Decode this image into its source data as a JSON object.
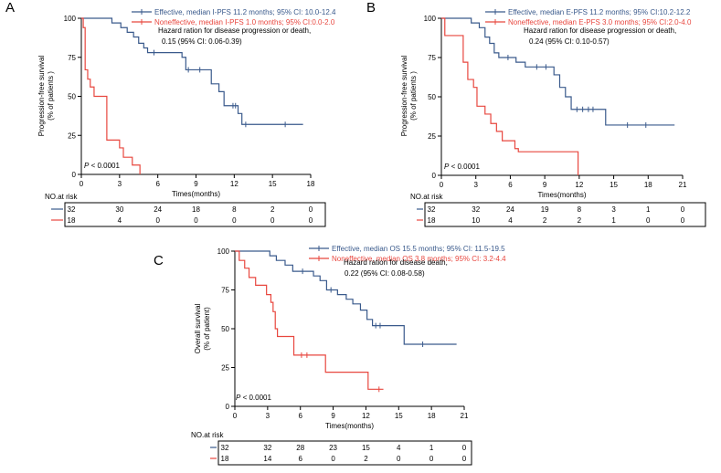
{
  "colors": {
    "effective": "#3a5a8c",
    "noneffective": "#e8473f",
    "axis": "#000000"
  },
  "chart_data": [
    {
      "type": "line",
      "panel_label": "A",
      "xlabel": "Times(months)",
      "ylabel": [
        "Progression-free survival",
        "(% of patients )"
      ],
      "xlim": [
        0,
        18
      ],
      "ylim": [
        0,
        100
      ],
      "xticks": [
        0,
        3,
        6,
        9,
        12,
        15,
        18
      ],
      "yticks": [
        0,
        25,
        50,
        75,
        100
      ],
      "pvalue": "< 0.0001",
      "legend": [
        "Effective, median I-PFS 11.2 months; 95% CI: 10.0-12.4",
        "Noneffective, median I-PFS 1.0 months; 95% CI:0.0-2.0"
      ],
      "annotation": [
        "Hazard ration for disease progression or death,",
        "0.15 (95% CI: 0.06-0.39)"
      ],
      "series": [
        {
          "name": "Effective",
          "step_points": [
            [
              0,
              100
            ],
            [
              2.4,
              100
            ],
            [
              2.4,
              97
            ],
            [
              3.1,
              97
            ],
            [
              3.1,
              94
            ],
            [
              3.6,
              94
            ],
            [
              3.6,
              91
            ],
            [
              4.1,
              91
            ],
            [
              4.1,
              88
            ],
            [
              4.5,
              88
            ],
            [
              4.5,
              84
            ],
            [
              4.9,
              84
            ],
            [
              4.9,
              81
            ],
            [
              5.2,
              81
            ],
            [
              5.2,
              78
            ],
            [
              7.9,
              78
            ],
            [
              7.9,
              75
            ],
            [
              8.2,
              75
            ],
            [
              8.2,
              67
            ],
            [
              10.2,
              67
            ],
            [
              10.2,
              58
            ],
            [
              10.8,
              58
            ],
            [
              10.8,
              53
            ],
            [
              11.2,
              53
            ],
            [
              11.2,
              44
            ],
            [
              12.3,
              44
            ],
            [
              12.3,
              39
            ],
            [
              12.6,
              39
            ],
            [
              12.6,
              32
            ],
            [
              17.4,
              32
            ]
          ],
          "censor_points": [
            [
              5.7,
              78
            ],
            [
              8.4,
              67
            ],
            [
              9.3,
              67
            ],
            [
              11.9,
              44
            ],
            [
              12.1,
              44
            ],
            [
              12.9,
              32
            ],
            [
              16.0,
              32
            ]
          ]
        },
        {
          "name": "Noneffective",
          "step_points": [
            [
              0,
              100
            ],
            [
              0.15,
              100
            ],
            [
              0.15,
              94
            ],
            [
              0.3,
              94
            ],
            [
              0.3,
              67
            ],
            [
              0.5,
              67
            ],
            [
              0.5,
              61
            ],
            [
              0.7,
              61
            ],
            [
              0.7,
              56
            ],
            [
              1.0,
              56
            ],
            [
              1.0,
              50
            ],
            [
              2.0,
              50
            ],
            [
              2.0,
              22
            ],
            [
              3.0,
              22
            ],
            [
              3.0,
              17
            ],
            [
              3.3,
              17
            ],
            [
              3.3,
              11
            ],
            [
              4.0,
              11
            ],
            [
              4.0,
              6
            ],
            [
              4.6,
              6
            ],
            [
              4.6,
              0
            ]
          ],
          "censor_points": []
        }
      ],
      "risk_table": {
        "title": "NO.at risk",
        "rows": [
          [
            "32",
            "30",
            "24",
            "18",
            "8",
            "2",
            "0"
          ],
          [
            "18",
            "4",
            "0",
            "0",
            "0",
            "0",
            "0"
          ]
        ]
      }
    },
    {
      "type": "line",
      "panel_label": "B",
      "xlabel": "Times(months)",
      "ylabel": [
        "Progression-free survival",
        "(% of patients )"
      ],
      "xlim": [
        0,
        21
      ],
      "ylim": [
        0,
        100
      ],
      "xticks": [
        0,
        3,
        6,
        9,
        12,
        15,
        18,
        21
      ],
      "yticks": [
        0,
        25,
        50,
        75,
        100
      ],
      "pvalue": "< 0.0001",
      "legend": [
        "Effective, median E-PFS 11.2 months; 95% CI:10.2-12.2",
        "Noneffective, median E-PFS 3.0 months; 95% CI:2.0-4.0"
      ],
      "annotation": [
        "Hazard ration for disease progression or death,",
        "0.24 (95% CI: 0.10-0.57)"
      ],
      "series": [
        {
          "name": "Effective",
          "step_points": [
            [
              0,
              100
            ],
            [
              2.6,
              100
            ],
            [
              2.6,
              97
            ],
            [
              3.3,
              97
            ],
            [
              3.3,
              94
            ],
            [
              3.8,
              94
            ],
            [
              3.8,
              88
            ],
            [
              4.2,
              88
            ],
            [
              4.2,
              84
            ],
            [
              4.6,
              84
            ],
            [
              4.6,
              78
            ],
            [
              5.0,
              78
            ],
            [
              5.0,
              75
            ],
            [
              6.5,
              75
            ],
            [
              6.5,
              72
            ],
            [
              7.3,
              72
            ],
            [
              7.3,
              69
            ],
            [
              9.8,
              69
            ],
            [
              9.8,
              64
            ],
            [
              10.3,
              64
            ],
            [
              10.3,
              56
            ],
            [
              10.8,
              56
            ],
            [
              10.8,
              50
            ],
            [
              11.3,
              50
            ],
            [
              11.3,
              42
            ],
            [
              14.3,
              42
            ],
            [
              14.3,
              32
            ],
            [
              20.3,
              32
            ]
          ],
          "censor_points": [
            [
              5.8,
              75
            ],
            [
              8.3,
              69
            ],
            [
              9.1,
              69
            ],
            [
              11.8,
              42
            ],
            [
              12.3,
              42
            ],
            [
              12.8,
              42
            ],
            [
              13.2,
              42
            ],
            [
              16.2,
              32
            ],
            [
              17.8,
              32
            ]
          ]
        },
        {
          "name": "Noneffective",
          "step_points": [
            [
              0,
              100
            ],
            [
              0.3,
              100
            ],
            [
              0.3,
              89
            ],
            [
              1.9,
              89
            ],
            [
              1.9,
              72
            ],
            [
              2.3,
              72
            ],
            [
              2.3,
              61
            ],
            [
              2.8,
              61
            ],
            [
              2.8,
              56
            ],
            [
              3.1,
              56
            ],
            [
              3.1,
              44
            ],
            [
              3.8,
              44
            ],
            [
              3.8,
              39
            ],
            [
              4.3,
              39
            ],
            [
              4.3,
              33
            ],
            [
              4.8,
              33
            ],
            [
              4.8,
              28
            ],
            [
              5.3,
              28
            ],
            [
              5.3,
              22
            ],
            [
              6.4,
              22
            ],
            [
              6.4,
              17
            ],
            [
              6.7,
              17
            ],
            [
              6.7,
              15
            ],
            [
              11.9,
              15
            ],
            [
              11.9,
              0
            ]
          ],
          "censor_points": []
        }
      ],
      "risk_table": {
        "title": "NO.at risk",
        "rows": [
          [
            "32",
            "32",
            "24",
            "19",
            "8",
            "3",
            "1",
            "0"
          ],
          [
            "18",
            "10",
            "4",
            "2",
            "2",
            "1",
            "0",
            "0"
          ]
        ]
      }
    },
    {
      "type": "line",
      "panel_label": "C",
      "xlabel": "Times(months)",
      "ylabel": [
        "Overall survival",
        "(% of patient)"
      ],
      "xlim": [
        0,
        21
      ],
      "ylim": [
        0,
        100
      ],
      "xticks": [
        0,
        3,
        6,
        9,
        12,
        15,
        18,
        21
      ],
      "yticks": [
        0,
        25,
        50,
        75,
        100
      ],
      "pvalue": "< 0.0001",
      "legend": [
        "Effective, median OS 15.5 months; 95% CI: 11.5-19.5",
        "Noneffective, median OS 3.8 months; 95% CI: 3.2-4.4"
      ],
      "annotation": [
        "Hazard ration for disease death,",
        "0.22 (95% CI: 0.08-0.58)"
      ],
      "series": [
        {
          "name": "Effective",
          "step_points": [
            [
              0,
              100
            ],
            [
              3.2,
              100
            ],
            [
              3.2,
              97
            ],
            [
              3.8,
              97
            ],
            [
              3.8,
              94
            ],
            [
              4.6,
              94
            ],
            [
              4.6,
              91
            ],
            [
              5.3,
              91
            ],
            [
              5.3,
              87
            ],
            [
              7.2,
              87
            ],
            [
              7.2,
              84
            ],
            [
              7.8,
              84
            ],
            [
              7.8,
              81
            ],
            [
              8.4,
              81
            ],
            [
              8.4,
              75
            ],
            [
              9.4,
              75
            ],
            [
              9.4,
              72
            ],
            [
              10.2,
              72
            ],
            [
              10.2,
              69
            ],
            [
              10.8,
              69
            ],
            [
              10.8,
              66
            ],
            [
              11.5,
              66
            ],
            [
              11.5,
              62
            ],
            [
              12.1,
              62
            ],
            [
              12.1,
              56
            ],
            [
              12.6,
              56
            ],
            [
              12.6,
              52
            ],
            [
              15.5,
              52
            ],
            [
              15.5,
              40
            ],
            [
              20.3,
              40
            ]
          ],
          "censor_points": [
            [
              6.2,
              87
            ],
            [
              8.8,
              75
            ],
            [
              12.9,
              52
            ],
            [
              13.3,
              52
            ],
            [
              17.2,
              40
            ]
          ]
        },
        {
          "name": "Noneffective",
          "step_points": [
            [
              0,
              100
            ],
            [
              0.4,
              100
            ],
            [
              0.4,
              94
            ],
            [
              0.9,
              94
            ],
            [
              0.9,
              89
            ],
            [
              1.3,
              89
            ],
            [
              1.3,
              83
            ],
            [
              1.9,
              83
            ],
            [
              1.9,
              78
            ],
            [
              2.9,
              78
            ],
            [
              2.9,
              72
            ],
            [
              3.3,
              72
            ],
            [
              3.3,
              67
            ],
            [
              3.5,
              67
            ],
            [
              3.5,
              61
            ],
            [
              3.7,
              61
            ],
            [
              3.7,
              50
            ],
            [
              3.9,
              50
            ],
            [
              3.9,
              45
            ],
            [
              5.4,
              45
            ],
            [
              5.4,
              33
            ],
            [
              8.3,
              33
            ],
            [
              8.3,
              22
            ],
            [
              12.2,
              22
            ],
            [
              12.2,
              11
            ],
            [
              13.6,
              11
            ]
          ],
          "censor_points": [
            [
              6.1,
              33
            ],
            [
              6.6,
              33
            ],
            [
              13.2,
              11
            ]
          ]
        }
      ],
      "risk_table": {
        "title": "NO.at risk",
        "rows": [
          [
            "32",
            "32",
            "28",
            "23",
            "15",
            "4",
            "1",
            "0"
          ],
          [
            "18",
            "14",
            "6",
            "0",
            "2",
            "0",
            "0",
            "0"
          ]
        ]
      }
    }
  ]
}
